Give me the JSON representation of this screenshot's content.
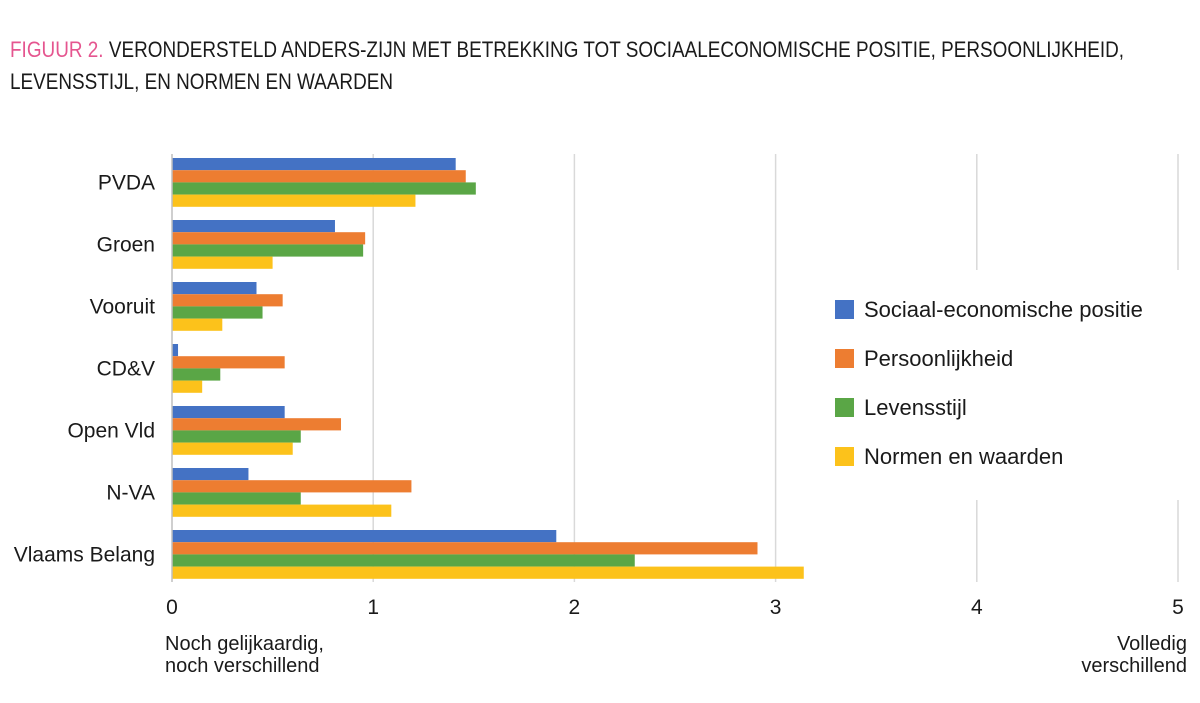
{
  "title": {
    "figure_label": "FIGUUR 2.",
    "text": "VERONDERSTELD ANDERS-ZIJN MET BETREKKING TOT SOCIAALECONOMISCHE POSITIE, PERSOONLIJKHEID, LEVENSSTIJL, EN NORMEN EN WAARDEN"
  },
  "axis_notes": {
    "left_line1": "Noch gelijkaardig,",
    "left_line2": "noch verschillend",
    "right_line1": "Volledig",
    "right_line2": "verschillend"
  },
  "chart_data": {
    "type": "bar",
    "orientation": "horizontal",
    "categories": [
      "PVDA",
      "Groen",
      "Vooruit",
      "CD&V",
      "Open Vld",
      "N-VA",
      "Vlaams Belang"
    ],
    "series": [
      {
        "name": "Sociaal-economische positie",
        "color": "#4472c4",
        "values": [
          1.41,
          0.81,
          0.42,
          0.03,
          0.56,
          0.38,
          1.91
        ]
      },
      {
        "name": "Persoonlijkheid",
        "color": "#ed7d31",
        "values": [
          1.46,
          0.96,
          0.55,
          0.56,
          0.84,
          1.19,
          2.91
        ]
      },
      {
        "name": "Levensstijl",
        "color": "#5aa646",
        "values": [
          1.51,
          0.95,
          0.45,
          0.24,
          0.64,
          0.64,
          2.3
        ]
      },
      {
        "name": "Normen en waarden",
        "color": "#fcc21b",
        "values": [
          1.21,
          0.5,
          0.25,
          0.15,
          0.6,
          1.09,
          3.14
        ]
      }
    ],
    "xlim": [
      0,
      5
    ],
    "xticks": [
      0,
      1,
      2,
      3,
      4,
      5
    ],
    "grid": "vertical",
    "legend_position": "right"
  }
}
